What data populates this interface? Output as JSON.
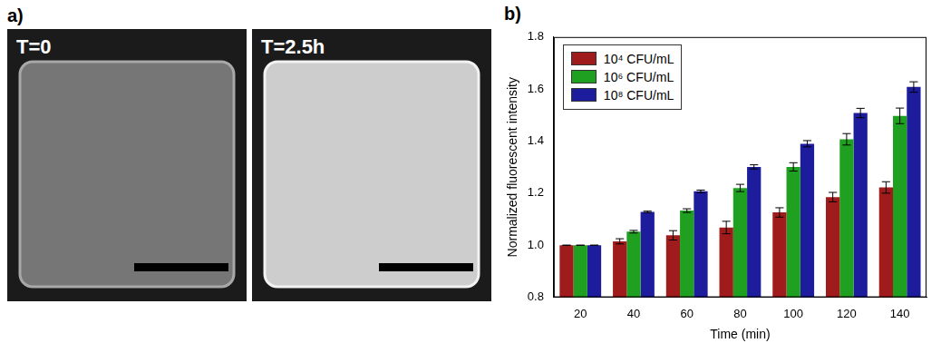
{
  "panel_labels": [
    "a)",
    "b)"
  ],
  "images": [
    {
      "label": "T=0"
    },
    {
      "label": "T=2.5h"
    }
  ],
  "chart_data": {
    "type": "bar",
    "x_label": "Time (min)",
    "y_label": "Normalized fluorescent intensity",
    "categories": [
      "20",
      "40",
      "60",
      "80",
      "100",
      "120",
      "140"
    ],
    "series": [
      {
        "name": "10⁴ CFU/mL",
        "color": "#a01c1c",
        "values": [
          1.0,
          1.015,
          1.038,
          1.068,
          1.126,
          1.185,
          1.222
        ],
        "errors": [
          0.0,
          0.01,
          0.018,
          0.024,
          0.018,
          0.018,
          0.022
        ]
      },
      {
        "name": "10⁶ CFU/mL",
        "color": "#20a020",
        "values": [
          1.0,
          1.052,
          1.133,
          1.22,
          1.301,
          1.407,
          1.497
        ],
        "errors": [
          0.0,
          0.005,
          0.007,
          0.014,
          0.016,
          0.022,
          0.03
        ]
      },
      {
        "name": "10⁸ CFU/mL",
        "color": "#1c1c9c",
        "values": [
          1.0,
          1.128,
          1.207,
          1.301,
          1.39,
          1.508,
          1.608
        ],
        "errors": [
          0.0,
          0.003,
          0.005,
          0.008,
          0.012,
          0.018,
          0.02
        ]
      }
    ],
    "ylim": [
      0.8,
      1.8
    ],
    "yticks": [
      0.8,
      {
        "value": 1.0,
        "label": "1.0"
      },
      1.2,
      1.4,
      1.6,
      1.8
    ],
    "grid": false,
    "legend": "upper left"
  }
}
